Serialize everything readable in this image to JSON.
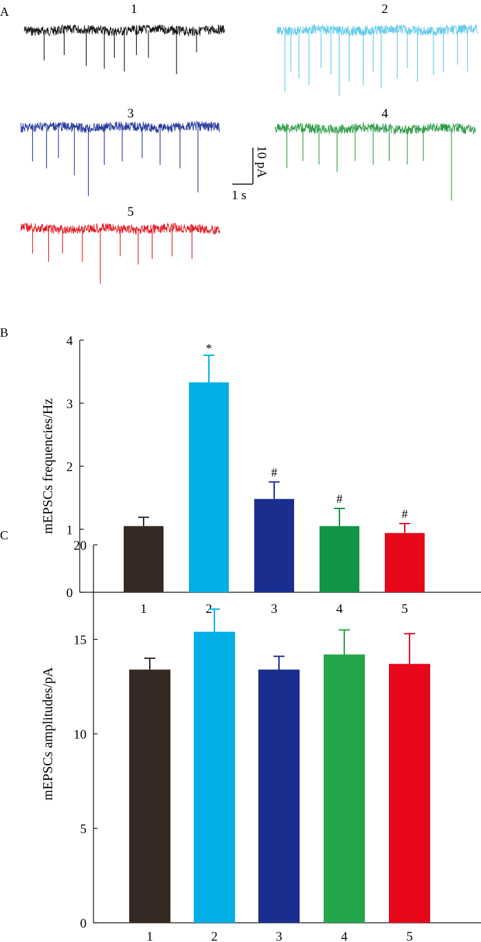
{
  "panels": {
    "A": {
      "letter": "A"
    },
    "B": {
      "letter": "B"
    },
    "C": {
      "letter": "C"
    }
  },
  "traces": [
    {
      "label": "1",
      "color": "#111111",
      "events": [
        0.1,
        0.2,
        0.31,
        0.4,
        0.45,
        0.5,
        0.56,
        0.62,
        0.76,
        0.86
      ],
      "depths": [
        0.55,
        0.45,
        0.65,
        0.7,
        0.5,
        0.75,
        0.45,
        0.5,
        0.8,
        0.4
      ]
    },
    {
      "label": "2",
      "color": "#5ec8ec",
      "events": [
        0.04,
        0.07,
        0.11,
        0.16,
        0.22,
        0.27,
        0.31,
        0.36,
        0.43,
        0.48,
        0.52,
        0.6,
        0.65,
        0.7,
        0.78,
        0.83,
        0.9,
        0.95
      ],
      "depths": [
        0.9,
        0.6,
        0.7,
        0.8,
        0.55,
        0.65,
        0.95,
        0.75,
        0.8,
        0.6,
        0.85,
        0.7,
        0.55,
        0.75,
        0.65,
        0.6,
        0.5,
        0.6
      ]
    },
    {
      "label": "3",
      "color": "#24369b",
      "events": [
        0.06,
        0.13,
        0.19,
        0.27,
        0.34,
        0.42,
        0.51,
        0.61,
        0.7,
        0.8,
        0.89
      ],
      "depths": [
        0.5,
        0.6,
        0.45,
        0.7,
        1.0,
        0.55,
        0.5,
        0.45,
        0.55,
        0.6,
        0.95
      ]
    },
    {
      "label": "4",
      "color": "#2e9c46",
      "events": [
        0.06,
        0.14,
        0.22,
        0.31,
        0.4,
        0.49,
        0.57,
        0.66,
        0.74,
        0.88
      ],
      "depths": [
        0.55,
        0.45,
        0.5,
        0.6,
        0.45,
        0.5,
        0.45,
        0.5,
        0.45,
        1.0
      ]
    },
    {
      "label": "5",
      "color": "#e11b22",
      "events": [
        0.06,
        0.14,
        0.21,
        0.31,
        0.4,
        0.5,
        0.59,
        0.66,
        0.76,
        0.86
      ],
      "depths": [
        0.45,
        0.6,
        0.45,
        0.6,
        1.0,
        0.5,
        0.65,
        0.55,
        0.5,
        0.55
      ]
    }
  ],
  "scalebar": {
    "time_label": "1 s",
    "current_label": "10 pA"
  },
  "chart_data": [
    {
      "type": "bar",
      "panel": "B",
      "categories": [
        "1",
        "2",
        "3",
        "4",
        "5"
      ],
      "values": [
        1.05,
        3.33,
        1.48,
        1.05,
        0.94
      ],
      "errors": [
        0.14,
        0.43,
        0.27,
        0.28,
        0.15
      ],
      "annotations": [
        "",
        "*",
        "#",
        "#",
        "#"
      ],
      "colors": [
        "#352924",
        "#00afe6",
        "#1a2e8f",
        "#129447",
        "#e6071b"
      ],
      "ylabel": "mEPSCs frequencies/Hz",
      "ylim": [
        0,
        4
      ],
      "yticks": [
        0,
        1,
        2,
        3,
        4
      ]
    },
    {
      "type": "bar",
      "panel": "C",
      "categories": [
        "1",
        "2",
        "3",
        "4",
        "5"
      ],
      "values": [
        13.4,
        15.4,
        13.4,
        14.2,
        13.7
      ],
      "errors": [
        0.6,
        1.2,
        0.7,
        1.3,
        1.6
      ],
      "annotations": [
        "",
        "",
        "",
        "",
        ""
      ],
      "colors": [
        "#352924",
        "#00afe6",
        "#1a2e8f",
        "#24a64a",
        "#e6071b"
      ],
      "ylabel": "mEPSCs amplitudes/pA",
      "ylim": [
        0,
        20
      ],
      "yticks": [
        0,
        5,
        10,
        15,
        20
      ]
    }
  ]
}
